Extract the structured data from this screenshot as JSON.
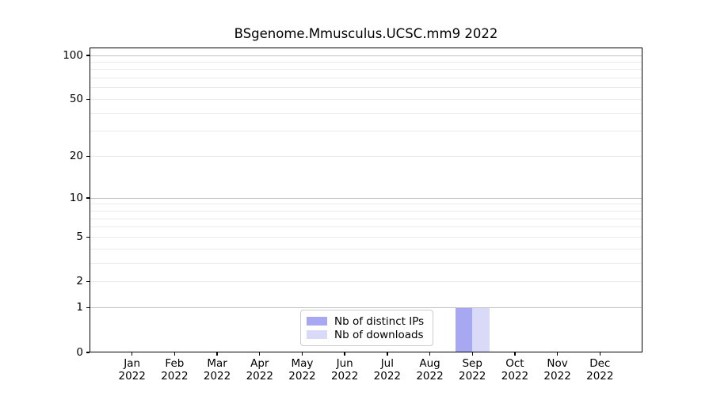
{
  "chart_data": {
    "type": "bar",
    "title": "BSgenome.Mmusculus.UCSC.mm9 2022",
    "categories": [
      "Jan 2022",
      "Feb 2022",
      "Mar 2022",
      "Apr 2022",
      "May 2022",
      "Jun 2022",
      "Jul 2022",
      "Aug 2022",
      "Sep 2022",
      "Oct 2022",
      "Nov 2022",
      "Dec 2022"
    ],
    "x_tick_line1": [
      "Jan",
      "Feb",
      "Mar",
      "Apr",
      "May",
      "Jun",
      "Jul",
      "Aug",
      "Sep",
      "Oct",
      "Nov",
      "Dec"
    ],
    "x_tick_line2": "2022",
    "series": [
      {
        "name": "Nb of distinct IPs",
        "color": "#a8a8f2",
        "values": [
          0,
          0,
          0,
          0,
          0,
          0,
          0,
          0,
          1,
          0,
          0,
          0
        ]
      },
      {
        "name": "Nb of downloads",
        "color": "#d9d9f8",
        "values": [
          0,
          0,
          0,
          0,
          0,
          0,
          0,
          0,
          1,
          0,
          0,
          0
        ]
      }
    ],
    "y_axis": {
      "scale": "log10(1+v)",
      "tick_labels": [
        "0",
        "1",
        "2",
        "5",
        "10",
        "20",
        "50",
        "100"
      ],
      "tick_values": [
        0,
        1,
        2,
        5,
        10,
        20,
        50,
        100
      ],
      "major_gridlines": [
        1,
        10,
        100
      ],
      "minor_gridlines": [
        2,
        3,
        4,
        5,
        6,
        7,
        8,
        9,
        20,
        30,
        40,
        50,
        60,
        70,
        80,
        90
      ],
      "ylim": [
        0,
        112
      ]
    },
    "legend": {
      "position": "lower center",
      "entries": [
        "Nb of distinct IPs",
        "Nb of downloads"
      ]
    },
    "grid": true,
    "colors": {
      "major_grid": "#c2c2c2",
      "minor_grid": "#ebebeb",
      "spine": "#000000",
      "text": "#000000",
      "legend_border": "#cccccc",
      "background": "#ffffff"
    }
  }
}
